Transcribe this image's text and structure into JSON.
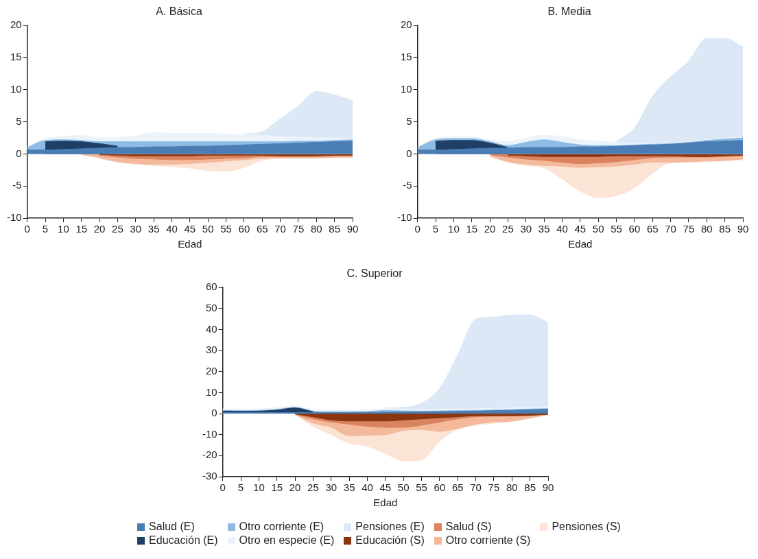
{
  "chart_data": [
    {
      "type": "area",
      "title": "A. Básica",
      "xlabel": "Edad",
      "legend": "bottom",
      "x": [
        0,
        5,
        10,
        15,
        20,
        25,
        30,
        35,
        40,
        45,
        50,
        55,
        60,
        65,
        70,
        75,
        80,
        85,
        90
      ],
      "xlim": [
        0,
        90
      ],
      "xticks": [
        0,
        5,
        10,
        15,
        20,
        25,
        30,
        35,
        40,
        45,
        50,
        55,
        60,
        65,
        70,
        75,
        80,
        85,
        90
      ],
      "ylim": [
        -10,
        20
      ],
      "yticks": [
        -10,
        -5,
        0,
        5,
        10,
        15,
        20
      ],
      "series": [
        {
          "name": "Salud (E)",
          "color": "#4a7db3",
          "values": [
            0.6,
            0.6,
            0.7,
            0.8,
            0.9,
            1.0,
            1.0,
            1.1,
            1.1,
            1.2,
            1.2,
            1.3,
            1.4,
            1.5,
            1.6,
            1.7,
            1.8,
            1.9,
            2.0
          ]
        },
        {
          "name": "Educación (E)",
          "color": "#1f3f66",
          "values": [
            null,
            1.9,
            2.0,
            1.9,
            1.6,
            1.2,
            null,
            null,
            null,
            null,
            null,
            null,
            null,
            null,
            null,
            null,
            null,
            null,
            null
          ]
        },
        {
          "name": "Otro corriente (E)",
          "color": "#8dbbe4",
          "values": [
            1.0,
            2.1,
            2.2,
            2.1,
            1.9,
            1.9,
            1.9,
            1.9,
            1.9,
            1.9,
            1.9,
            1.9,
            1.9,
            1.9,
            1.9,
            2.0,
            2.0,
            2.1,
            2.2
          ]
        },
        {
          "name": "Otro en especie (E)",
          "color": "#edf3fa",
          "values": [
            1.1,
            2.4,
            2.7,
            2.9,
            2.5,
            2.6,
            2.8,
            3.3,
            3.2,
            3.2,
            3.2,
            3.1,
            3.0,
            2.9,
            2.7,
            2.6,
            2.5,
            2.5,
            2.3
          ]
        },
        {
          "name": "Pensiones (E)",
          "color": "#dce8f6",
          "values": [
            null,
            null,
            null,
            null,
            null,
            null,
            null,
            null,
            null,
            null,
            null,
            null,
            3.1,
            3.5,
            5.5,
            7.5,
            9.7,
            9.2,
            8.3
          ]
        },
        {
          "name": "Educación (S)",
          "color": "#8a3510",
          "values": [
            null,
            null,
            null,
            null,
            -0.1,
            -0.2,
            -0.3,
            -0.3,
            -0.3,
            -0.3,
            -0.2,
            -0.2,
            -0.2,
            -0.2,
            -0.3,
            -0.3,
            -0.3,
            -0.2,
            -0.2
          ]
        },
        {
          "name": "Salud (S)",
          "color": "#d9845e",
          "values": [
            null,
            null,
            null,
            null,
            -0.2,
            -0.5,
            -0.7,
            -0.8,
            -0.9,
            -0.9,
            -0.8,
            -0.7,
            -0.6,
            -0.4,
            -0.4,
            -0.4,
            -0.4,
            -0.3,
            -0.3
          ]
        },
        {
          "name": "Otro corriente (S)",
          "color": "#f4b99b",
          "values": [
            null,
            null,
            null,
            -0.1,
            -0.6,
            -1.2,
            -1.5,
            -1.6,
            -1.6,
            -1.5,
            -1.3,
            -1.1,
            -0.9,
            -0.7,
            -0.6,
            -0.6,
            -0.6,
            -0.5,
            -0.5
          ]
        },
        {
          "name": "Pensiones (S)",
          "color": "#fbe3d5",
          "values": [
            null,
            null,
            null,
            null,
            -0.7,
            -1.3,
            -1.6,
            -1.8,
            -2.0,
            -2.2,
            -2.6,
            -2.7,
            -2.1,
            -1.0,
            -0.7,
            -0.7,
            -0.7,
            -0.6,
            -0.6
          ]
        }
      ]
    },
    {
      "type": "area",
      "title": "B. Media",
      "xlabel": "Edad",
      "x": [
        0,
        5,
        10,
        15,
        20,
        25,
        30,
        35,
        40,
        45,
        50,
        55,
        60,
        65,
        70,
        75,
        80,
        85,
        90
      ],
      "xlim": [
        0,
        90
      ],
      "xticks": [
        0,
        5,
        10,
        15,
        20,
        25,
        30,
        35,
        40,
        45,
        50,
        55,
        60,
        65,
        70,
        75,
        80,
        85,
        90
      ],
      "ylim": [
        -10,
        20
      ],
      "yticks": [
        -10,
        -5,
        0,
        5,
        10,
        15,
        20
      ],
      "series": [
        {
          "color": "#4a7db3",
          "values": [
            0.6,
            0.6,
            0.7,
            0.8,
            0.9,
            0.9,
            1.0,
            1.0,
            1.0,
            1.1,
            1.1,
            1.2,
            1.3,
            1.4,
            1.5,
            1.7,
            1.9,
            2.0,
            2.1
          ]
        },
        {
          "color": "#1f3f66",
          "values": [
            null,
            2.0,
            2.1,
            2.1,
            1.7,
            1.0,
            null,
            null,
            null,
            null,
            null,
            null,
            null,
            null,
            null,
            null,
            null,
            null,
            null
          ]
        },
        {
          "color": "#8dbbe4",
          "values": [
            1.0,
            2.2,
            2.4,
            2.4,
            1.9,
            1.3,
            1.8,
            2.2,
            1.8,
            1.4,
            1.3,
            1.3,
            1.4,
            1.5,
            1.6,
            1.8,
            2.1,
            2.3,
            2.5
          ]
        },
        {
          "color": "#edf3fa",
          "values": [
            1.1,
            2.4,
            2.7,
            2.7,
            2.2,
            1.9,
            2.5,
            2.9,
            2.7,
            2.2,
            2.0,
            1.8,
            1.6,
            1.6,
            1.7,
            1.9,
            2.2,
            2.4,
            2.6
          ]
        },
        {
          "color": "#dce8f6",
          "values": [
            null,
            null,
            null,
            null,
            null,
            null,
            null,
            null,
            null,
            null,
            null,
            2.0,
            4.0,
            9.0,
            12.0,
            14.5,
            18.0,
            18.0,
            16.7
          ]
        },
        {
          "color": "#8a3510",
          "values": [
            null,
            null,
            null,
            null,
            null,
            -0.2,
            -0.3,
            -0.4,
            -0.4,
            -0.4,
            -0.4,
            -0.3,
            -0.3,
            -0.3,
            -0.3,
            -0.4,
            -0.4,
            -0.3,
            -0.2
          ]
        },
        {
          "color": "#d9845e",
          "values": [
            null,
            null,
            null,
            null,
            -0.1,
            -0.5,
            -0.8,
            -1.0,
            -1.3,
            -1.5,
            -1.4,
            -1.2,
            -0.9,
            -0.6,
            -0.5,
            -0.5,
            -0.5,
            -0.4,
            -0.3
          ]
        },
        {
          "color": "#f4b99b",
          "values": [
            null,
            null,
            null,
            null,
            -0.3,
            -1.2,
            -1.6,
            -1.8,
            -1.9,
            -2.1,
            -2.0,
            -1.9,
            -1.6,
            -1.3,
            -1.3,
            -1.2,
            -1.1,
            -1.0,
            -0.8
          ]
        },
        {
          "color": "#fbe3d5",
          "values": [
            null,
            null,
            null,
            null,
            -0.4,
            -1.3,
            -1.8,
            -2.2,
            -3.9,
            -5.8,
            -6.8,
            -6.5,
            -5.3,
            -3.0,
            -1.4,
            -1.3,
            -1.2,
            -1.1,
            -0.9
          ]
        }
      ]
    },
    {
      "type": "area",
      "title": "C. Superior",
      "xlabel": "Edad",
      "x": [
        0,
        5,
        10,
        15,
        20,
        25,
        30,
        35,
        40,
        45,
        50,
        55,
        60,
        65,
        70,
        75,
        80,
        85,
        90
      ],
      "xlim": [
        0,
        90
      ],
      "xticks": [
        0,
        5,
        10,
        15,
        20,
        25,
        30,
        35,
        40,
        45,
        50,
        55,
        60,
        65,
        70,
        75,
        80,
        85,
        90
      ],
      "ylim": [
        -30,
        60
      ],
      "yticks": [
        -30,
        -20,
        -10,
        0,
        10,
        20,
        30,
        40,
        50,
        60
      ],
      "series": [
        {
          "color": "#4a7db3",
          "values": [
            0.5,
            0.5,
            0.5,
            0.5,
            0.5,
            0.5,
            0.5,
            0.5,
            0.6,
            0.7,
            0.8,
            0.9,
            1.0,
            1.1,
            1.2,
            1.4,
            1.6,
            1.9,
            2.1
          ]
        },
        {
          "color": "#1f3f66",
          "values": [
            1.2,
            1.1,
            1.2,
            1.7,
            2.7,
            0.9,
            null,
            null,
            null,
            null,
            null,
            null,
            null,
            null,
            null,
            null,
            null,
            null,
            null
          ]
        },
        {
          "color": "#8dbbe4",
          "values": [
            1.5,
            1.4,
            1.5,
            2.0,
            3.0,
            1.2,
            0.9,
            0.9,
            1.0,
            1.5,
            1.3,
            1.2,
            1.3,
            1.4,
            1.5,
            1.7,
            1.9,
            2.2,
            2.4
          ]
        },
        {
          "color": "#edf3fa",
          "values": [
            2.3,
            2.2,
            2.3,
            2.8,
            3.8,
            2.0,
            1.7,
            1.7,
            1.8,
            2.3,
            2.1,
            2.0,
            2.1,
            2.2,
            2.3,
            2.5,
            2.7,
            3.0,
            3.2
          ]
        },
        {
          "color": "#dce8f6",
          "values": [
            null,
            null,
            null,
            null,
            null,
            null,
            null,
            null,
            null,
            2.8,
            3.0,
            5,
            12,
            28,
            45,
            46,
            47,
            47,
            43.5
          ]
        },
        {
          "color": "#8a3510",
          "values": [
            null,
            null,
            null,
            null,
            -0.1,
            -1.5,
            -3,
            -3.5,
            -3.5,
            -3.5,
            -3,
            -2.5,
            -2,
            -1.5,
            -1,
            -1,
            -1,
            -0.8,
            -0.3
          ]
        },
        {
          "color": "#d9845e",
          "values": [
            null,
            null,
            null,
            null,
            -0.3,
            -2.5,
            -4,
            -5,
            -6,
            -6.5,
            -6.5,
            -5.5,
            -4,
            -2.5,
            -1.5,
            -1.2,
            -1.1,
            -0.9,
            -0.4
          ]
        },
        {
          "color": "#f4b99b",
          "values": [
            null,
            null,
            null,
            null,
            -0.4,
            -4.5,
            -6.5,
            -10.5,
            -10.3,
            -10,
            -8,
            -7.5,
            -8.5,
            -7,
            -5,
            -4,
            -3.5,
            -2,
            -0.5
          ]
        },
        {
          "color": "#fbe3d5",
          "values": [
            null,
            null,
            null,
            null,
            -0.5,
            -6,
            -10,
            -14,
            -15.5,
            -19,
            -22.5,
            -22,
            -13,
            -7.5,
            -5.5,
            -4.5,
            -3.8,
            -2.3,
            -0.6
          ]
        }
      ]
    }
  ]
}
